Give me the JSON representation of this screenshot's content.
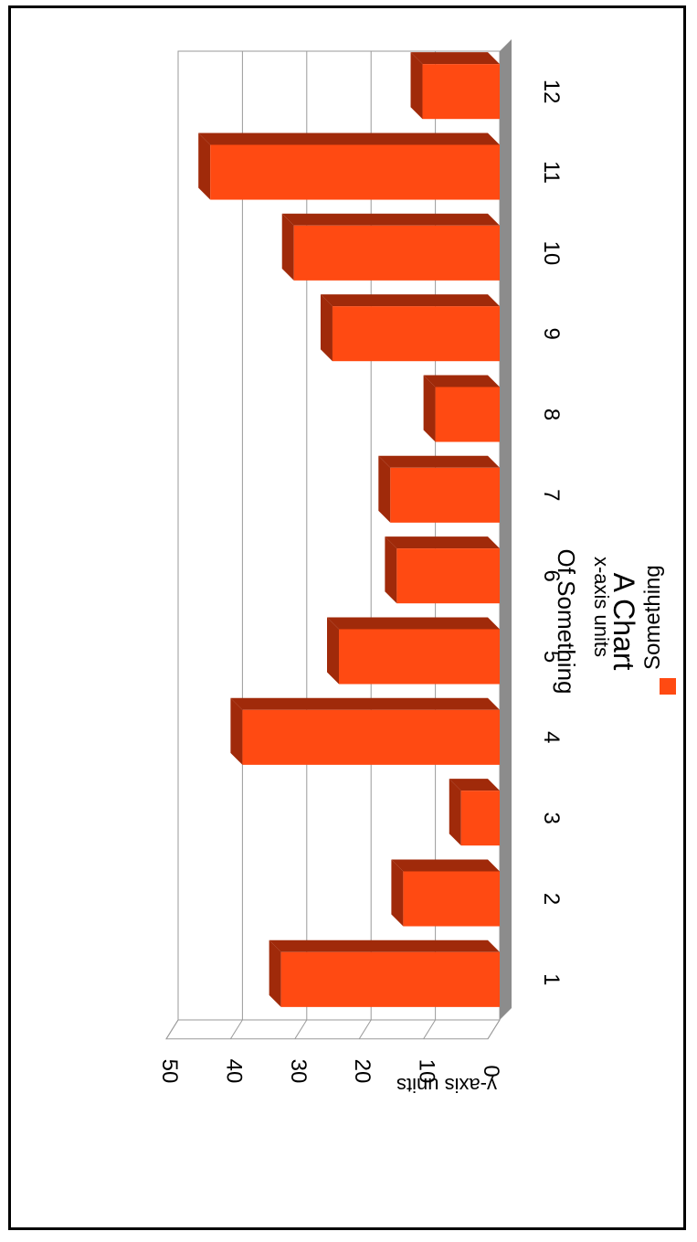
{
  "chart_data": {
    "type": "bar",
    "title": "A Chart",
    "subtitle": "Of Something",
    "xlabel": "x-axis units",
    "ylabel": "y-axis units",
    "categories": [
      "1",
      "2",
      "3",
      "4",
      "5",
      "6",
      "7",
      "8",
      "9",
      "10",
      "11",
      "12"
    ],
    "series": [
      {
        "name": "Something",
        "color": "#ff4a12",
        "values": [
          34,
          15,
          6,
          40,
          25,
          16,
          17,
          10,
          26,
          32,
          45,
          12
        ]
      }
    ],
    "ylim": [
      0,
      50
    ],
    "yticks": [
      "0",
      "10",
      "20",
      "30",
      "40",
      "50"
    ],
    "grid": true,
    "legend": "bottom",
    "orientation": "rotated 90° clockwise",
    "style": "3d"
  }
}
